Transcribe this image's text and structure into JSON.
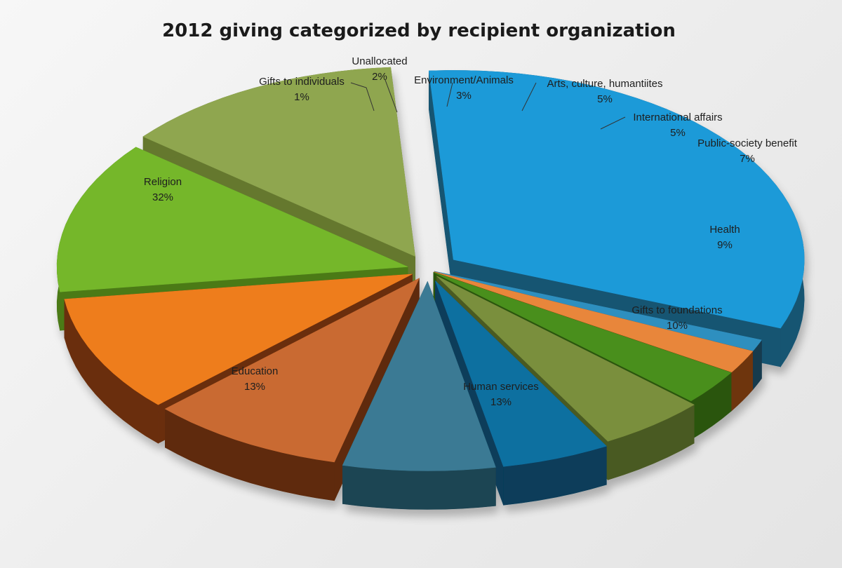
{
  "chart_data": {
    "type": "pie",
    "variant": "3d-exploded",
    "title": "2012 giving categorized by recipient organization",
    "slices": [
      {
        "label": "Religion",
        "value_label": "32%",
        "value": 32,
        "color": "#1f9ad8",
        "side_color": "#145472"
      },
      {
        "label": "Gifts to individuals",
        "value_label": "1%",
        "value": 1,
        "color": "#2f8fbf",
        "side_color": "#163a4e"
      },
      {
        "label": "Unallocated",
        "value_label": "2%",
        "value": 2,
        "color": "#e8863a",
        "side_color": "#6e3410"
      },
      {
        "label": "Environment/Animals",
        "value_label": "3%",
        "value": 3,
        "color": "#4a8f1c",
        "side_color": "#2a5510"
      },
      {
        "label": "Arts, culture, humantiites",
        "value_label": "5%",
        "value": 5,
        "color": "#7a8f3c",
        "side_color": "#4a5a22"
      },
      {
        "label": "International affairs",
        "value_label": "5%",
        "value": 5,
        "color": "#0e6fa0",
        "side_color": "#083e5a"
      },
      {
        "label": "Public-society benefit",
        "value_label": "7%",
        "value": 7,
        "color": "#3a7a94",
        "side_color": "#1f4452"
      },
      {
        "label": "Health",
        "value_label": "9%",
        "value": 9,
        "color": "#c96a32",
        "side_color": "#5e2c0e"
      },
      {
        "label": "Gifts to foundations",
        "value_label": "10%",
        "value": 10,
        "color": "#ee7d1e",
        "side_color": "#6a2e08"
      },
      {
        "label": "Human services",
        "value_label": "13%",
        "value": 13,
        "color": "#74b72c",
        "side_color": "#4b7a18"
      },
      {
        "label": "Education",
        "value_label": "13%",
        "value": 13,
        "color": "#8fa650",
        "side_color": "#65782f"
      }
    ]
  }
}
